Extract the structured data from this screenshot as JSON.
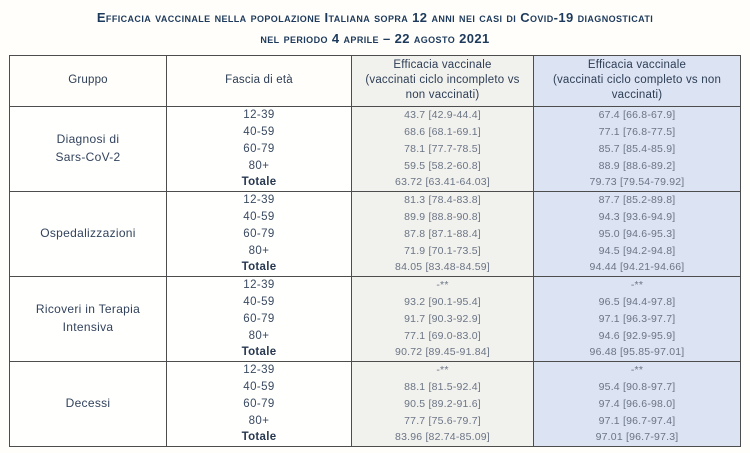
{
  "title": {
    "line1": "Efficacia vaccinale nella popolazione Italiana sopra 12 anni nei casi di Covid-19 diagnosticati",
    "line2": "nel periodo 4 aprile – 22 agosto 2021"
  },
  "chart_data": {
    "type": "table",
    "title": "Efficacia vaccinale nella popolazione Italiana sopra 12 anni nei casi di Covid-19 diagnosticati nel periodo 4 aprile – 22 agosto 2021",
    "columns": [
      "Gruppo",
      "Fascia di età",
      "Efficacia vaccinale\n(vaccinati ciclo incompleto vs\nnon vaccinati)",
      "Efficacia vaccinale\n(vaccinati ciclo completo vs non\nvaccinati)"
    ],
    "groups": [
      {
        "gruppo": "Diagnosi di\nSars-CoV-2",
        "rows": [
          {
            "fascia": "12-39",
            "incompleto": "43.7 [42.9-44.4]",
            "completo": "67.4 [66.8-67.9]"
          },
          {
            "fascia": "40-59",
            "incompleto": "68.6 [68.1-69.1]",
            "completo": "77.1 [76.8-77.5]"
          },
          {
            "fascia": "60-79",
            "incompleto": "78.1 [77.7-78.5]",
            "completo": "85.7 [85.4-85.9]"
          },
          {
            "fascia": "80+",
            "incompleto": "59.5 [58.2-60.8]",
            "completo": "88.9 [88.6-89.2]"
          },
          {
            "fascia": "Totale",
            "incompleto": "63.72 [63.41-64.03]",
            "completo": "79.73 [79.54-79.92]"
          }
        ]
      },
      {
        "gruppo": "Ospedalizzazioni",
        "rows": [
          {
            "fascia": "12-39",
            "incompleto": "81.3 [78.4-83.8]",
            "completo": "87.7 [85.2-89.8]"
          },
          {
            "fascia": "40-59",
            "incompleto": "89.9 [88.8-90.8]",
            "completo": "94.3 [93.6-94.9]"
          },
          {
            "fascia": "60-79",
            "incompleto": "87.8 [87.1-88.4]",
            "completo": "95.0 [94.6-95.3]"
          },
          {
            "fascia": "80+",
            "incompleto": "71.9 [70.1-73.5]",
            "completo": "94.5 [94.2-94.8]"
          },
          {
            "fascia": "Totale",
            "incompleto": "84.05 [83.48-84.59]",
            "completo": "94.44 [94.21-94.66]"
          }
        ]
      },
      {
        "gruppo": "Ricoveri in Terapia\nIntensiva",
        "rows": [
          {
            "fascia": "12-39",
            "incompleto": "-**",
            "completo": "-**"
          },
          {
            "fascia": "40-59",
            "incompleto": "93.2 [90.1-95.4]",
            "completo": "96.5 [94.4-97.8]"
          },
          {
            "fascia": "60-79",
            "incompleto": "91.7 [90.3-92.9]",
            "completo": "97.1 [96.3-97.7]"
          },
          {
            "fascia": "80+",
            "incompleto": "77.1 [69.0-83.0]",
            "completo": "94.6 [92.9-95.9]"
          },
          {
            "fascia": "Totale",
            "incompleto": "90.72 [89.45-91.84]",
            "completo": "96.48 [95.85-97.01]"
          }
        ]
      },
      {
        "gruppo": "Decessi",
        "rows": [
          {
            "fascia": "12-39",
            "incompleto": "-**",
            "completo": "-**"
          },
          {
            "fascia": "40-59",
            "incompleto": "88.1 [81.5-92.4]",
            "completo": "95.4 [90.8-97.7]"
          },
          {
            "fascia": "60-79",
            "incompleto": "90.5 [89.2-91.6]",
            "completo": "97.4 [96.6-98.0]"
          },
          {
            "fascia": "80+",
            "incompleto": "77.7 [75.6-79.7]",
            "completo": "97.1 [96.7-97.4]"
          },
          {
            "fascia": "Totale",
            "incompleto": "83.96 [82.74-85.09]",
            "completo": "97.01 [96.7-97.3]"
          }
        ]
      }
    ]
  },
  "colors": {
    "title_navy": "#1d3a5c",
    "incompleto_column_bg": "#f1f1ee",
    "completo_column_bg": "#dce3f3",
    "table_border": "#4d4d4d",
    "value_text": "#6b7585",
    "page_bg": "#fffefa"
  }
}
